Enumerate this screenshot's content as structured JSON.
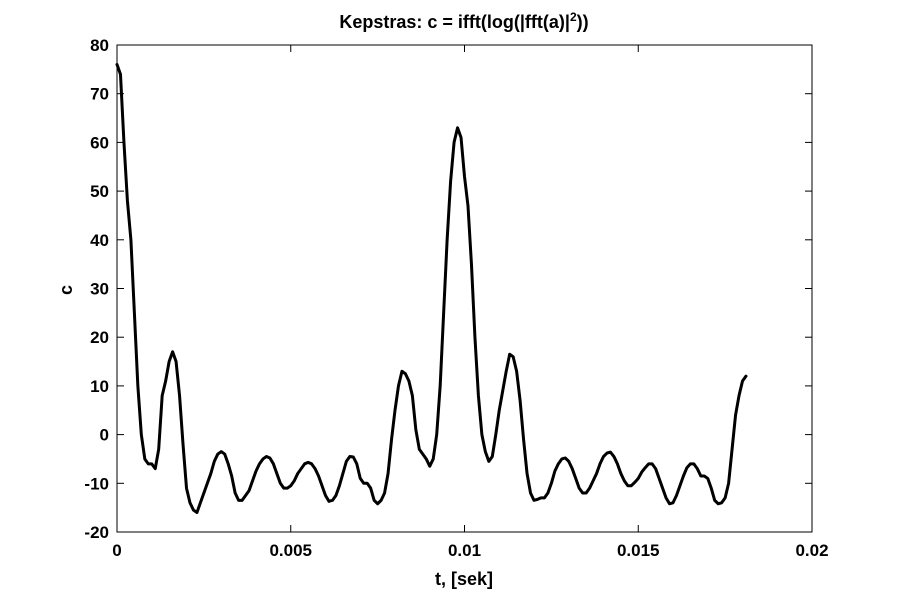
{
  "chart_data": {
    "type": "line",
    "title_prefix": "Kepstras:  c = ifft(log(|fft(a)|",
    "title_sup": "2",
    "title_suffix": "))",
    "xlabel": "t, [sek]",
    "ylabel": "c",
    "xlim": [
      0,
      0.02
    ],
    "ylim": [
      -20,
      80
    ],
    "x_ticks": [
      0,
      0.005,
      0.01,
      0.015,
      0.02
    ],
    "x_tick_labels": [
      "0",
      "0.005",
      "0.01",
      "0.015",
      "0.02"
    ],
    "y_ticks": [
      -20,
      -10,
      0,
      10,
      20,
      30,
      40,
      50,
      60,
      70,
      80
    ],
    "y_tick_labels": [
      "-20",
      "-10",
      "0",
      "10",
      "20",
      "30",
      "40",
      "50",
      "60",
      "70",
      "80"
    ],
    "grid": false,
    "line_color": "#000000",
    "series": [
      {
        "points": [
          [
            0.0,
            76
          ],
          [
            0.0001,
            74
          ],
          [
            0.0002,
            60
          ],
          [
            0.0003,
            48
          ],
          [
            0.0004,
            40
          ],
          [
            0.0005,
            25
          ],
          [
            0.0006,
            10
          ],
          [
            0.0007,
            0
          ],
          [
            0.0008,
            -5
          ],
          [
            0.0009,
            -6
          ],
          [
            0.001,
            -6
          ],
          [
            0.0011,
            -7
          ],
          [
            0.0012,
            -3
          ],
          [
            0.0013,
            8
          ],
          [
            0.0014,
            11
          ],
          [
            0.0015,
            15
          ],
          [
            0.0016,
            17
          ],
          [
            0.0017,
            15
          ],
          [
            0.0018,
            8
          ],
          [
            0.0019,
            -2
          ],
          [
            0.002,
            -11
          ],
          [
            0.0021,
            -14
          ],
          [
            0.0022,
            -15.5
          ],
          [
            0.0023,
            -16
          ],
          [
            0.0024,
            -14
          ],
          [
            0.0025,
            -12
          ],
          [
            0.0026,
            -10
          ],
          [
            0.0027,
            -8
          ],
          [
            0.0028,
            -5.5
          ],
          [
            0.0029,
            -4
          ],
          [
            0.003,
            -3.5
          ],
          [
            0.0031,
            -4
          ],
          [
            0.0032,
            -6
          ],
          [
            0.0033,
            -8.5
          ],
          [
            0.0034,
            -12
          ],
          [
            0.0035,
            -13.5
          ],
          [
            0.0036,
            -13.5
          ],
          [
            0.0037,
            -12.5
          ],
          [
            0.0038,
            -11.5
          ],
          [
            0.0039,
            -9.5
          ],
          [
            0.004,
            -7.5
          ],
          [
            0.0041,
            -6
          ],
          [
            0.0042,
            -5
          ],
          [
            0.0043,
            -4.5
          ],
          [
            0.0044,
            -4.8
          ],
          [
            0.0045,
            -6
          ],
          [
            0.0046,
            -8
          ],
          [
            0.0047,
            -10
          ],
          [
            0.0048,
            -11
          ],
          [
            0.0049,
            -11
          ],
          [
            0.005,
            -10.5
          ],
          [
            0.0051,
            -9.5
          ],
          [
            0.0052,
            -8
          ],
          [
            0.0053,
            -7
          ],
          [
            0.0054,
            -6
          ],
          [
            0.0055,
            -5.7
          ],
          [
            0.0056,
            -6
          ],
          [
            0.0057,
            -7
          ],
          [
            0.0058,
            -8.5
          ],
          [
            0.0059,
            -10.5
          ],
          [
            0.006,
            -12.5
          ],
          [
            0.0061,
            -13.7
          ],
          [
            0.0062,
            -13.5
          ],
          [
            0.0063,
            -12.5
          ],
          [
            0.0064,
            -10.5
          ],
          [
            0.0065,
            -8
          ],
          [
            0.0066,
            -5.5
          ],
          [
            0.0067,
            -4.5
          ],
          [
            0.0068,
            -4.6
          ],
          [
            0.0069,
            -6
          ],
          [
            0.007,
            -9
          ],
          [
            0.0071,
            -10
          ],
          [
            0.0072,
            -10
          ],
          [
            0.0073,
            -11
          ],
          [
            0.0074,
            -13.5
          ],
          [
            0.0075,
            -14.2
          ],
          [
            0.0076,
            -13.5
          ],
          [
            0.0077,
            -12
          ],
          [
            0.0078,
            -8
          ],
          [
            0.0079,
            -1
          ],
          [
            0.008,
            5
          ],
          [
            0.0081,
            10
          ],
          [
            0.0082,
            13
          ],
          [
            0.0083,
            12.5
          ],
          [
            0.0084,
            11
          ],
          [
            0.0085,
            8
          ],
          [
            0.0086,
            1
          ],
          [
            0.0087,
            -3
          ],
          [
            0.0088,
            -4
          ],
          [
            0.0089,
            -5
          ],
          [
            0.009,
            -6.5
          ],
          [
            0.0091,
            -5
          ],
          [
            0.0092,
            0
          ],
          [
            0.0093,
            10
          ],
          [
            0.0094,
            25
          ],
          [
            0.0095,
            40
          ],
          [
            0.0096,
            52
          ],
          [
            0.0097,
            60
          ],
          [
            0.0098,
            63
          ],
          [
            0.0099,
            61
          ],
          [
            0.01,
            53
          ],
          [
            0.0101,
            47
          ],
          [
            0.0102,
            35
          ],
          [
            0.0103,
            20
          ],
          [
            0.0104,
            8
          ],
          [
            0.0105,
            0
          ],
          [
            0.0106,
            -3.5
          ],
          [
            0.0107,
            -5.5
          ],
          [
            0.0108,
            -4.5
          ],
          [
            0.0109,
            0
          ],
          [
            0.011,
            5
          ],
          [
            0.0111,
            9
          ],
          [
            0.0112,
            13
          ],
          [
            0.0113,
            16.5
          ],
          [
            0.0114,
            16
          ],
          [
            0.0115,
            13
          ],
          [
            0.0116,
            7
          ],
          [
            0.0117,
            -1
          ],
          [
            0.0118,
            -8
          ],
          [
            0.0119,
            -12
          ],
          [
            0.012,
            -13.5
          ],
          [
            0.0121,
            -13.3
          ],
          [
            0.0122,
            -13
          ],
          [
            0.0123,
            -13
          ],
          [
            0.0124,
            -12
          ],
          [
            0.0125,
            -10
          ],
          [
            0.0126,
            -7.5
          ],
          [
            0.0127,
            -6
          ],
          [
            0.0128,
            -5
          ],
          [
            0.0129,
            -4.8
          ],
          [
            0.013,
            -5.5
          ],
          [
            0.0131,
            -7
          ],
          [
            0.0132,
            -9
          ],
          [
            0.0133,
            -11
          ],
          [
            0.0134,
            -12
          ],
          [
            0.0135,
            -12
          ],
          [
            0.0136,
            -11
          ],
          [
            0.0137,
            -9.5
          ],
          [
            0.0138,
            -8
          ],
          [
            0.0139,
            -6
          ],
          [
            0.014,
            -4.5
          ],
          [
            0.0141,
            -3.8
          ],
          [
            0.0142,
            -3.6
          ],
          [
            0.0143,
            -4.5
          ],
          [
            0.0144,
            -6
          ],
          [
            0.0145,
            -8
          ],
          [
            0.0146,
            -9.5
          ],
          [
            0.0147,
            -10.5
          ],
          [
            0.0148,
            -10.5
          ],
          [
            0.0149,
            -9.8
          ],
          [
            0.015,
            -9
          ],
          [
            0.0151,
            -7.7
          ],
          [
            0.0152,
            -6.8
          ],
          [
            0.0153,
            -6
          ],
          [
            0.0154,
            -6
          ],
          [
            0.0155,
            -7
          ],
          [
            0.0156,
            -9
          ],
          [
            0.0157,
            -11
          ],
          [
            0.0158,
            -13
          ],
          [
            0.0159,
            -14.2
          ],
          [
            0.016,
            -14
          ],
          [
            0.0161,
            -12.5
          ],
          [
            0.0162,
            -10.5
          ],
          [
            0.0163,
            -8.5
          ],
          [
            0.0164,
            -6.8
          ],
          [
            0.0165,
            -6
          ],
          [
            0.0166,
            -6
          ],
          [
            0.0167,
            -7
          ],
          [
            0.0168,
            -8.5
          ],
          [
            0.0169,
            -8.5
          ],
          [
            0.017,
            -9
          ],
          [
            0.0171,
            -11
          ],
          [
            0.0172,
            -13.5
          ],
          [
            0.0173,
            -14.2
          ],
          [
            0.0174,
            -14
          ],
          [
            0.0175,
            -13
          ],
          [
            0.0176,
            -10
          ],
          [
            0.0177,
            -3
          ],
          [
            0.0178,
            4
          ],
          [
            0.0179,
            8
          ],
          [
            0.018,
            11
          ],
          [
            0.0181,
            12
          ]
        ]
      }
    ]
  }
}
